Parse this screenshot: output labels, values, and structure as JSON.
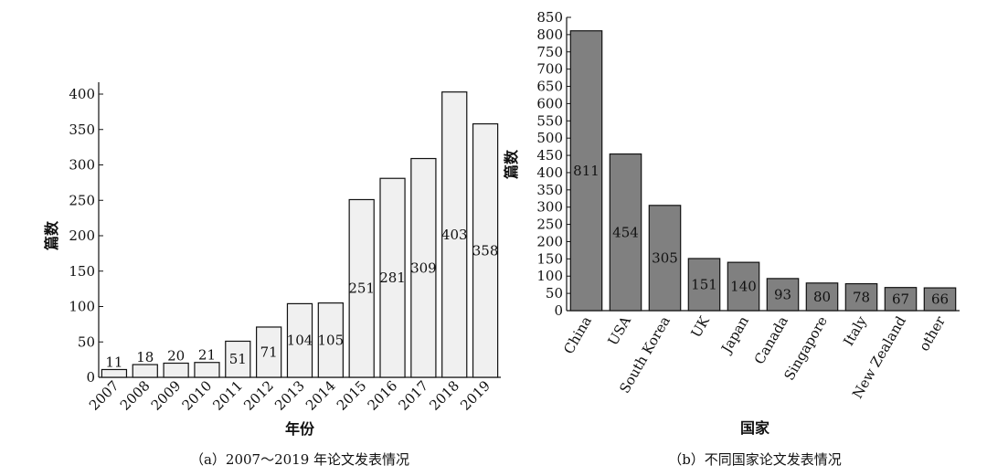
{
  "chart_data": [
    {
      "type": "bar",
      "title": "",
      "caption": "（a）2007～2019 年论文发表情况",
      "xlabel": "年份",
      "ylabel": "篇数",
      "categories": [
        "2007",
        "2008",
        "2009",
        "2010",
        "2011",
        "2012",
        "2013",
        "2014",
        "2015",
        "2016",
        "2017",
        "2018",
        "2019"
      ],
      "values": [
        11,
        18,
        20,
        21,
        51,
        71,
        104,
        105,
        251,
        281,
        309,
        403,
        358
      ],
      "ylim": [
        0,
        400
      ],
      "yticks": [
        0,
        50,
        100,
        150,
        200,
        250,
        300,
        350,
        400
      ],
      "bar_color": "#f0f0f0",
      "grid": false,
      "legend": "none"
    },
    {
      "type": "bar",
      "title": "",
      "caption": "（b）不同国家论文发表情况",
      "xlabel": "国家",
      "ylabel": "篇数",
      "categories": [
        "China",
        "USA",
        "South Korea",
        "UK",
        "Japan",
        "Canada",
        "Singapore",
        "Italy",
        "New Zealand",
        "other"
      ],
      "values": [
        811,
        454,
        305,
        151,
        140,
        93,
        80,
        78,
        67,
        66
      ],
      "ylim": [
        0,
        850
      ],
      "yticks": [
        0,
        50,
        100,
        150,
        200,
        250,
        300,
        350,
        400,
        450,
        500,
        550,
        600,
        650,
        700,
        750,
        800,
        850
      ],
      "bar_color": "#808080",
      "grid": false,
      "legend": "none"
    }
  ]
}
